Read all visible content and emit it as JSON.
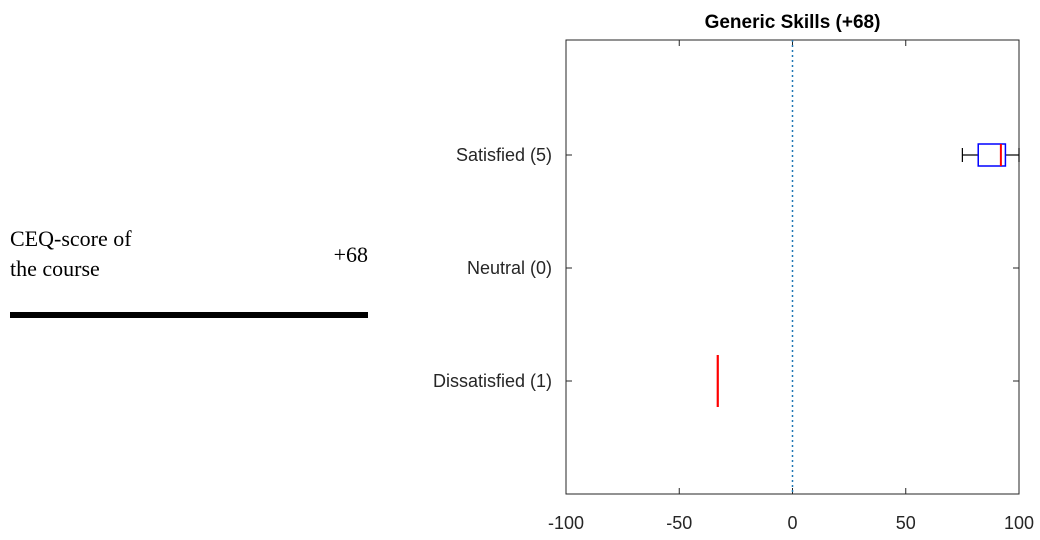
{
  "ceq": {
    "label_line1": "CEQ-score of",
    "label_line2": "the course",
    "value": "+68"
  },
  "chart_data": {
    "type": "boxplot",
    "orientation": "horizontal",
    "title": "Generic Skills (+68)",
    "xlim": [
      -100,
      100
    ],
    "xticks": [
      -100,
      -50,
      0,
      50,
      100
    ],
    "xtick_labels": [
      "-100",
      "-50",
      "0",
      "50",
      "100"
    ],
    "reference_line": {
      "x": 0,
      "style": "dotted",
      "color": "#1f77b4"
    },
    "categories": [
      {
        "label": "Satisfied (5)",
        "box": {
          "whisker_low": 75,
          "q1": 82,
          "median": 92,
          "q3": 94,
          "whisker_high": 100
        }
      },
      {
        "label": "Neutral (0)",
        "box": null
      },
      {
        "label": "Dissatisfied (1)",
        "box": {
          "whisker_low": -33,
          "q1": -33,
          "median": -33,
          "q3": -33,
          "whisker_high": -33
        }
      }
    ],
    "colors": {
      "box": "#0000ff",
      "median": "#ff0000",
      "whisker": "#000000",
      "axis": "#262626"
    }
  }
}
